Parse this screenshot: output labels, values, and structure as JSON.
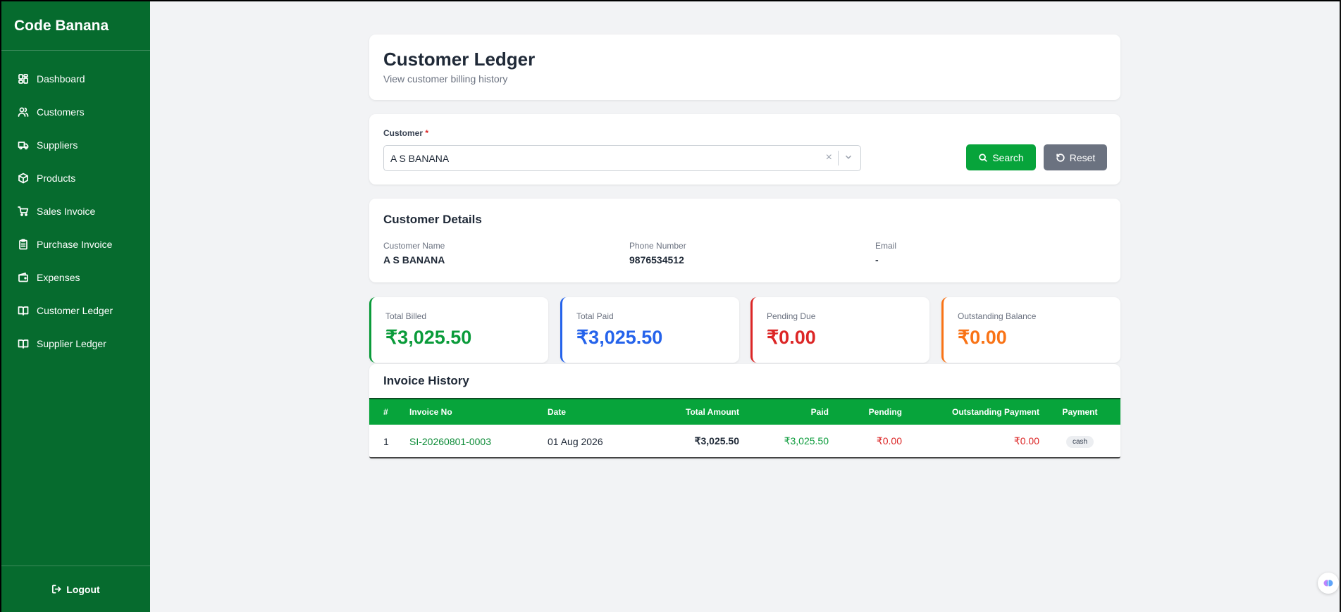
{
  "app": {
    "brand": "Code Banana"
  },
  "sidebar": {
    "items": [
      {
        "label": "Dashboard",
        "icon": "dashboard-icon"
      },
      {
        "label": "Customers",
        "icon": "users-icon"
      },
      {
        "label": "Suppliers",
        "icon": "truck-icon"
      },
      {
        "label": "Products",
        "icon": "package-icon"
      },
      {
        "label": "Sales Invoice",
        "icon": "cart-icon"
      },
      {
        "label": "Purchase Invoice",
        "icon": "clipboard-icon"
      },
      {
        "label": "Expenses",
        "icon": "wallet-icon"
      },
      {
        "label": "Customer Ledger",
        "icon": "book-icon"
      },
      {
        "label": "Supplier Ledger",
        "icon": "book-icon"
      }
    ],
    "logout": "Logout"
  },
  "header": {
    "title": "Customer Ledger",
    "subtitle": "View customer billing history"
  },
  "filter": {
    "customer_label": "Customer",
    "required_mark": "*",
    "customer_value": "A S BANANA",
    "clear_glyph": "×",
    "search_label": "Search",
    "reset_label": "Reset"
  },
  "details": {
    "title": "Customer Details",
    "name_label": "Customer Name",
    "name_value": "A S BANANA",
    "phone_label": "Phone Number",
    "phone_value": "9876534512",
    "email_label": "Email",
    "email_value": "-"
  },
  "stats": {
    "billed": {
      "label": "Total Billed",
      "value": "₹3,025.50",
      "color": "#0a9b3a"
    },
    "paid": {
      "label": "Total Paid",
      "value": "₹3,025.50",
      "color": "#2563eb"
    },
    "pending": {
      "label": "Pending Due",
      "value": "₹0.00",
      "color": "#dc2626"
    },
    "outstanding": {
      "label": "Outstanding Balance",
      "value": "₹0.00",
      "color": "#f97316"
    }
  },
  "history": {
    "title": "Invoice History",
    "columns": [
      "#",
      "Invoice No",
      "Date",
      "Total Amount",
      "Paid",
      "Pending",
      "Outstanding Payment",
      "Payment"
    ],
    "rows": [
      {
        "num": "1",
        "invoice_no": "SI-20260801-0003",
        "date": "01 Aug 2026",
        "total": "₹3,025.50",
        "paid": "₹3,025.50",
        "pending": "₹0.00",
        "outstanding": "₹0.00",
        "payment": "cash"
      }
    ]
  },
  "colors": {
    "sidebar_bg": "#066b2e",
    "accent_green": "#07a43b",
    "reset_gray": "#6b7280"
  }
}
